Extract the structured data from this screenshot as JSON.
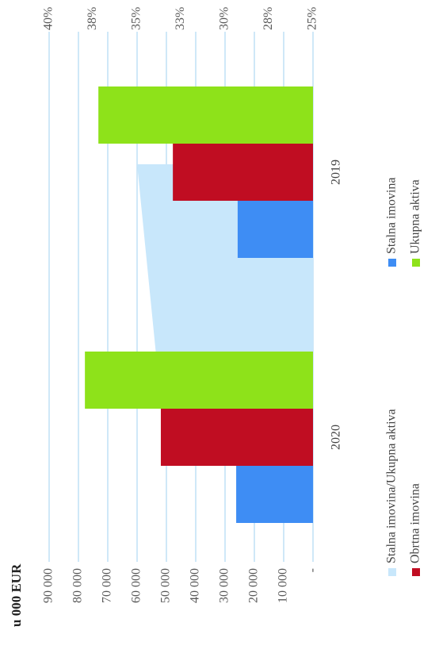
{
  "chart_data": {
    "type": "bar",
    "title": "u 000 EUR",
    "categories": [
      "2020",
      "2019"
    ],
    "series": [
      {
        "name": "Stalna imovina/Ukupna aktiva",
        "type": "area",
        "axis": "y2",
        "color": "#c8e7fb",
        "values": [
          33.5,
          35
        ]
      },
      {
        "name": "Stalna imovina",
        "color": "#3e8df4",
        "values": [
          26200,
          25700
        ]
      },
      {
        "name": "Obrtna imovina",
        "color": "#c00d22",
        "values": [
          51900,
          47800
        ]
      },
      {
        "name": "Ukupna aktiva",
        "color": "#8ee21a",
        "values": [
          77800,
          73200
        ]
      }
    ],
    "ylim": [
      0,
      90000
    ],
    "yticks": [
      {
        "value": 0,
        "label": "-"
      },
      {
        "value": 10000,
        "label": "10 000"
      },
      {
        "value": 20000,
        "label": "20 000"
      },
      {
        "value": 30000,
        "label": "30 000"
      },
      {
        "value": 40000,
        "label": "40 000"
      },
      {
        "value": 50000,
        "label": "50 000"
      },
      {
        "value": 60000,
        "label": "60 000"
      },
      {
        "value": 70000,
        "label": "70 000"
      },
      {
        "value": 80000,
        "label": "80 000"
      },
      {
        "value": 90000,
        "label": "90 000"
      }
    ],
    "y2lim": [
      25,
      40
    ],
    "y2ticks": [
      {
        "value": 25,
        "label": "25%"
      },
      {
        "value": 27.5,
        "label": "28%"
      },
      {
        "value": 30,
        "label": "30%"
      },
      {
        "value": 32.5,
        "label": "33%"
      },
      {
        "value": 35,
        "label": "35%"
      },
      {
        "value": 37.5,
        "label": "38%"
      },
      {
        "value": 40,
        "label": "40%"
      }
    ],
    "grid": true,
    "legend": "bottom"
  }
}
